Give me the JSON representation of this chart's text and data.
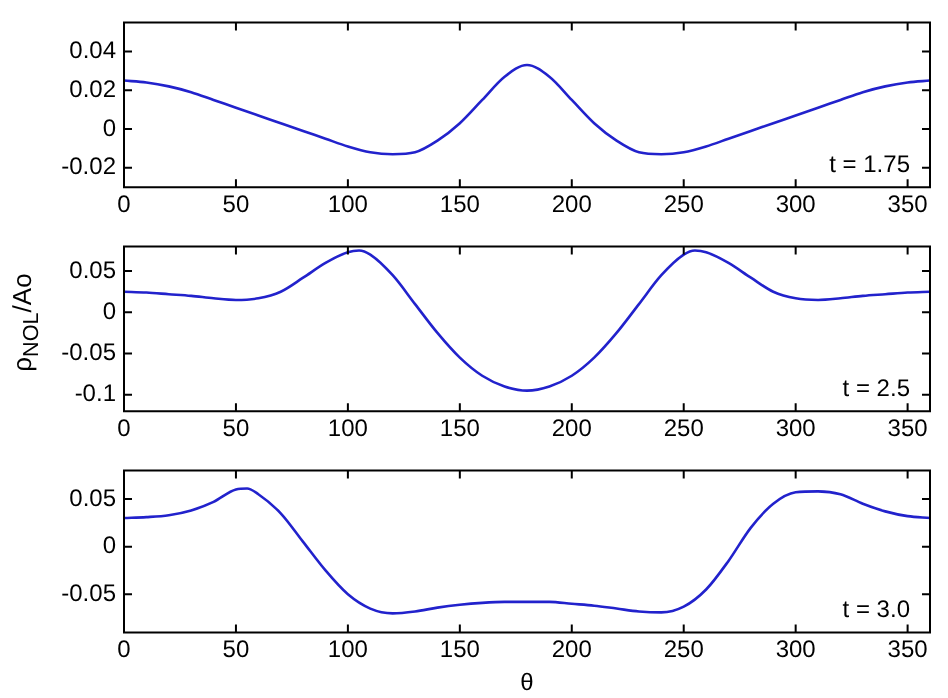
{
  "chart_data": [
    {
      "type": "line",
      "x": [
        0,
        10,
        20,
        30,
        40,
        50,
        60,
        70,
        80,
        90,
        100,
        110,
        120,
        130,
        140,
        150,
        160,
        170,
        180,
        190,
        200,
        210,
        220,
        230,
        240,
        250,
        260,
        270,
        280,
        290,
        300,
        310,
        320,
        330,
        340,
        350,
        360
      ],
      "series": [
        {
          "color": "#2222cc",
          "values": [
            0.025,
            0.024,
            0.022,
            0.019,
            0.015,
            0.011,
            0.007,
            0.003,
            -0.001,
            -0.005,
            -0.009,
            -0.012,
            -0.013,
            -0.012,
            -0.006,
            0.003,
            0.015,
            0.027,
            0.033,
            0.027,
            0.015,
            0.003,
            -0.006,
            -0.012,
            -0.013,
            -0.012,
            -0.009,
            -0.005,
            -0.001,
            0.003,
            0.007,
            0.011,
            0.015,
            0.019,
            0.022,
            0.024,
            0.025
          ]
        }
      ],
      "xlim": [
        0,
        360
      ],
      "xticks": [
        0,
        50,
        100,
        150,
        200,
        250,
        300,
        350
      ],
      "ylim": [
        -0.03,
        0.055
      ],
      "yticks": [
        -0.02,
        0,
        0.02,
        0.04
      ],
      "grid": false,
      "annotations": [
        "t = 1.75"
      ]
    },
    {
      "type": "line",
      "x": [
        0,
        10,
        20,
        30,
        40,
        50,
        60,
        70,
        80,
        90,
        100,
        105,
        110,
        120,
        130,
        140,
        150,
        160,
        170,
        180,
        190,
        200,
        210,
        220,
        230,
        240,
        250,
        255,
        260,
        270,
        280,
        290,
        300,
        310,
        320,
        330,
        340,
        350,
        360
      ],
      "series": [
        {
          "color": "#2222cc",
          "values": [
            0.025,
            0.024,
            0.022,
            0.02,
            0.017,
            0.015,
            0.017,
            0.025,
            0.042,
            0.06,
            0.073,
            0.075,
            0.07,
            0.045,
            0.01,
            -0.025,
            -0.055,
            -0.077,
            -0.09,
            -0.095,
            -0.09,
            -0.077,
            -0.055,
            -0.025,
            0.01,
            0.045,
            0.07,
            0.075,
            0.073,
            0.06,
            0.042,
            0.025,
            0.017,
            0.015,
            0.017,
            0.02,
            0.022,
            0.024,
            0.025
          ]
        }
      ],
      "xlim": [
        0,
        360
      ],
      "xticks": [
        0,
        50,
        100,
        150,
        200,
        250,
        300,
        350
      ],
      "ylim": [
        -0.12,
        0.08
      ],
      "yticks": [
        -0.1,
        -0.05,
        0,
        0.05
      ],
      "grid": false,
      "ylabel": "ρ$_{NOL}$/Ao",
      "annotations": [
        "t = 2.5"
      ]
    },
    {
      "type": "line",
      "x": [
        0,
        10,
        20,
        30,
        40,
        50,
        55,
        60,
        70,
        80,
        90,
        100,
        110,
        120,
        130,
        140,
        150,
        160,
        170,
        180,
        190,
        200,
        210,
        220,
        230,
        240,
        250,
        260,
        270,
        280,
        290,
        300,
        310,
        320,
        330,
        340,
        350,
        360
      ],
      "series": [
        {
          "color": "#2222cc",
          "values": [
            0.03,
            0.031,
            0.033,
            0.038,
            0.047,
            0.06,
            0.061,
            0.055,
            0.035,
            0.005,
            -0.025,
            -0.05,
            -0.065,
            -0.07,
            -0.068,
            -0.064,
            -0.061,
            -0.059,
            -0.058,
            -0.058,
            -0.058,
            -0.06,
            -0.062,
            -0.065,
            -0.068,
            -0.069,
            -0.063,
            -0.045,
            -0.015,
            0.02,
            0.045,
            0.057,
            0.058,
            0.055,
            0.045,
            0.037,
            0.032,
            0.03
          ]
        }
      ],
      "xlim": [
        0,
        360
      ],
      "xticks": [
        0,
        50,
        100,
        150,
        200,
        250,
        300,
        350
      ],
      "ylim": [
        -0.09,
        0.08
      ],
      "yticks": [
        -0.05,
        0,
        0.05
      ],
      "grid": false,
      "xlabel": "θ",
      "annotations": [
        "t = 3.0"
      ]
    }
  ]
}
